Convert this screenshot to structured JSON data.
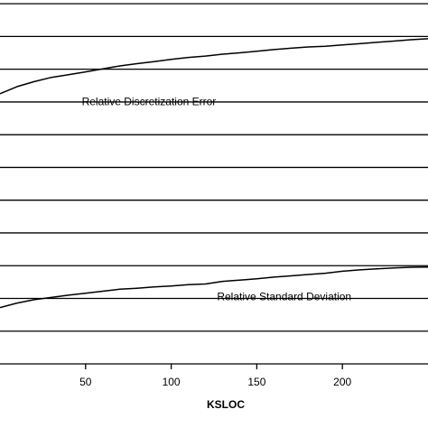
{
  "chart_data": {
    "type": "line",
    "title": "",
    "xlabel": "KSLOC",
    "ylabel": "",
    "xlim": [
      0,
      250
    ],
    "ylim": [
      0,
      11.5
    ],
    "x_ticks": [
      50,
      100,
      150,
      200
    ],
    "x_tick_labels": [
      "50",
      "100",
      "150",
      "200"
    ],
    "grid_y": [
      1,
      2,
      3,
      4,
      5,
      6,
      7,
      8,
      9,
      10,
      11
    ],
    "grid": "horizontal",
    "legend": "none",
    "series": [
      {
        "name": "Relative Discretization Error",
        "x": [
          0,
          10,
          20,
          30,
          40,
          50,
          60,
          70,
          80,
          90,
          100,
          110,
          120,
          130,
          140,
          150,
          160,
          170,
          180,
          190,
          200,
          210,
          220,
          230,
          240,
          250
        ],
        "y": [
          8.25,
          8.47,
          8.62,
          8.75,
          8.83,
          8.92,
          9.01,
          9.1,
          9.17,
          9.23,
          9.3,
          9.36,
          9.4,
          9.46,
          9.5,
          9.55,
          9.6,
          9.64,
          9.68,
          9.7,
          9.74,
          9.78,
          9.82,
          9.86,
          9.9,
          9.93
        ]
      },
      {
        "name": "Relative Standard Deviation",
        "x": [
          0,
          10,
          20,
          30,
          40,
          50,
          60,
          70,
          80,
          90,
          100,
          110,
          120,
          130,
          140,
          150,
          160,
          170,
          180,
          190,
          200,
          210,
          220,
          230,
          240,
          250
        ],
        "y": [
          1.72,
          1.86,
          1.96,
          2.03,
          2.1,
          2.16,
          2.22,
          2.28,
          2.31,
          2.35,
          2.38,
          2.42,
          2.44,
          2.52,
          2.56,
          2.6,
          2.65,
          2.69,
          2.73,
          2.77,
          2.83,
          2.87,
          2.9,
          2.93,
          2.95,
          2.96
        ]
      }
    ],
    "annotations": [
      {
        "text": "Relative Discretization Error",
        "x": 87,
        "y": 7.9
      },
      {
        "text": "Relative Standard Deviation",
        "x": 166,
        "y": 1.95
      }
    ],
    "colors": {
      "line": "#000000",
      "grid": "#000000",
      "background": "#ffffff"
    }
  }
}
